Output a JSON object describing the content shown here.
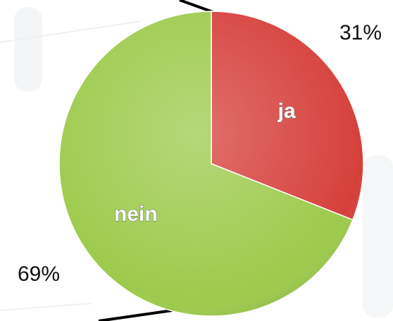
{
  "chart_data": {
    "type": "pie",
    "categories": [
      "ja",
      "nein"
    ],
    "values": [
      31,
      69
    ],
    "value_labels": [
      "31%",
      "69%"
    ],
    "colors": [
      "#d6403c",
      "#9dca4c"
    ]
  }
}
